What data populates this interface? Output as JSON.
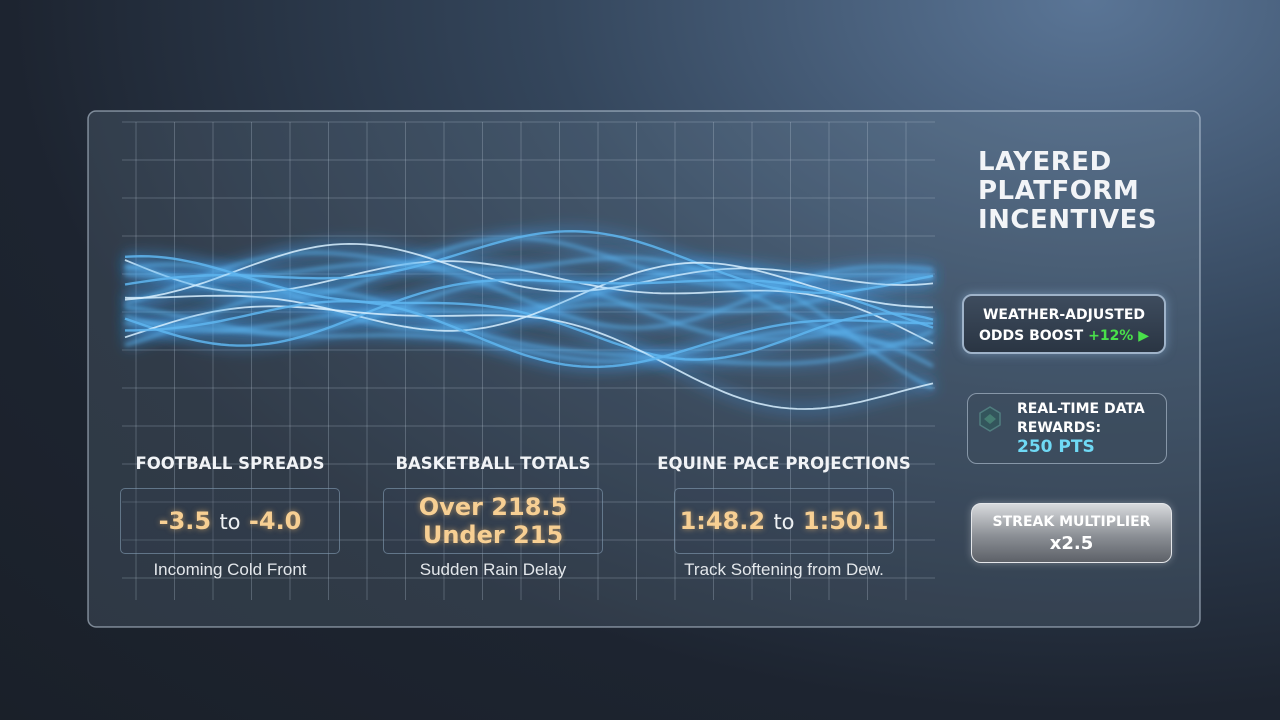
{
  "sidebar": {
    "title": [
      "LAYERED",
      "PLATFORM",
      "INCENTIVES"
    ],
    "badges": [
      {
        "lines": [
          "WEATHER-ADJUSTED",
          "ODDS BOOST"
        ],
        "value": "+12%"
      },
      {
        "lines": [
          "REAL-TIME DATA",
          "REWARDS:"
        ],
        "value": "250 PTS"
      },
      {
        "lines": [
          "STREAK MULTIPLIER"
        ],
        "value": "x2.5"
      }
    ]
  },
  "markets": [
    {
      "title": "FOOTBALL SPREADS",
      "range": [
        "-3.5",
        "to",
        "-4.0"
      ],
      "note": "Incoming Cold Front"
    },
    {
      "title": "BASKETBALL TOTALS",
      "lines": [
        "Over 218.5",
        "Under 215"
      ],
      "note": "Sudden Rain Delay"
    },
    {
      "title": "EQUINE PACE PROJECTIONS",
      "range": [
        "1:48.2",
        "to",
        "1:50.1"
      ],
      "note": "Track Softening from Dew."
    }
  ]
}
